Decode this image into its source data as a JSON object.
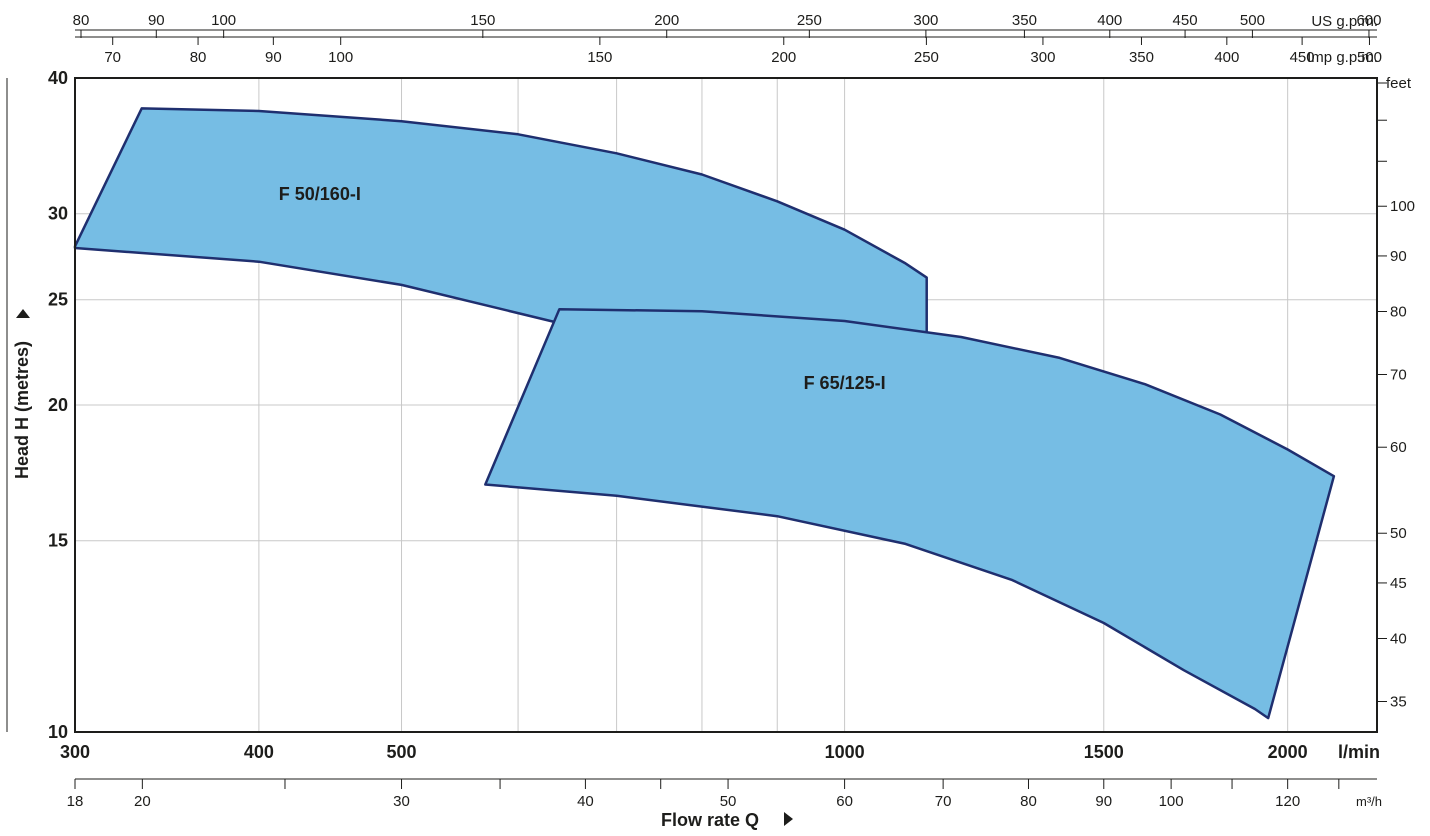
{
  "chart_data": {
    "type": "area",
    "title": "",
    "xlabel": "Flow rate  Q",
    "ylabel": "Head H  (metres)",
    "x_unit_lmin": "l/min",
    "x_unit_m3h": "m³/h",
    "x_unit_usgpm": "US g.p.m.",
    "x_unit_impgpm": "Imp g.p.m.",
    "y_unit_feet": "feet",
    "x_scale": "log",
    "y_scale": "log",
    "xlim": [
      300,
      2300
    ],
    "ylim": [
      10,
      40
    ],
    "grid": true,
    "colors": {
      "fill": "#76bde4",
      "stroke": "#1f2f6f",
      "grid": "#c8c8c8",
      "text": "#1d1d1b"
    },
    "ticks": {
      "lmin": [
        "300",
        "400",
        "500",
        "1000",
        "1500",
        "2000"
      ],
      "metres": [
        "10",
        "15",
        "20",
        "25",
        "30",
        "40"
      ],
      "m3h": [
        "18",
        "20",
        "30",
        "40",
        "50",
        "60",
        "70",
        "80",
        "90",
        "100",
        "120"
      ],
      "usgpm": [
        "80",
        "90",
        "100",
        "150",
        "200",
        "250",
        "300",
        "350",
        "400",
        "450",
        "500",
        "600"
      ],
      "impgpm": [
        "70",
        "80",
        "90",
        "100",
        "150",
        "200",
        "250",
        "300",
        "350",
        "400",
        "450",
        "500"
      ],
      "feet": [
        "35",
        "40",
        "45",
        "50",
        "60",
        "70",
        "80",
        "90",
        "100"
      ]
    },
    "series": [
      {
        "name": "F 50/160-I",
        "upper": [
          [
            300,
            28
          ],
          [
            333,
            37.5
          ],
          [
            400,
            37.3
          ],
          [
            500,
            36.5
          ],
          [
            600,
            35.5
          ],
          [
            700,
            34.1
          ],
          [
            800,
            32.6
          ],
          [
            900,
            30.8
          ],
          [
            1000,
            29
          ],
          [
            1100,
            27
          ],
          [
            1137,
            26.2
          ]
        ],
        "lower": [
          [
            300,
            27.9
          ],
          [
            400,
            27.1
          ],
          [
            500,
            25.8
          ],
          [
            600,
            24.3
          ],
          [
            700,
            23.1
          ],
          [
            800,
            21.8
          ],
          [
            900,
            20.5
          ],
          [
            1000,
            19.1
          ],
          [
            1100,
            17.8
          ],
          [
            1137,
            17.4
          ]
        ],
        "right_edge": [
          [
            1137,
            26.2
          ],
          [
            1087,
            23.5
          ]
        ]
      },
      {
        "name": "F 65/125-I",
        "upper": [
          [
            640,
            24.5
          ],
          [
            800,
            24.4
          ],
          [
            1000,
            23.9
          ],
          [
            1200,
            23.1
          ],
          [
            1400,
            22.1
          ],
          [
            1600,
            20.9
          ],
          [
            1800,
            19.6
          ],
          [
            2000,
            18.2
          ],
          [
            2150,
            17.2
          ]
        ],
        "lower": [
          [
            570,
            16.9
          ],
          [
            700,
            16.5
          ],
          [
            900,
            15.8
          ],
          [
            1100,
            14.9
          ],
          [
            1300,
            13.8
          ],
          [
            1500,
            12.6
          ],
          [
            1700,
            11.4
          ],
          [
            1900,
            10.5
          ],
          [
            1940,
            10.3
          ]
        ],
        "right_edge": [
          [
            2150,
            17.2
          ],
          [
            1940,
            10.3
          ]
        ]
      }
    ]
  }
}
